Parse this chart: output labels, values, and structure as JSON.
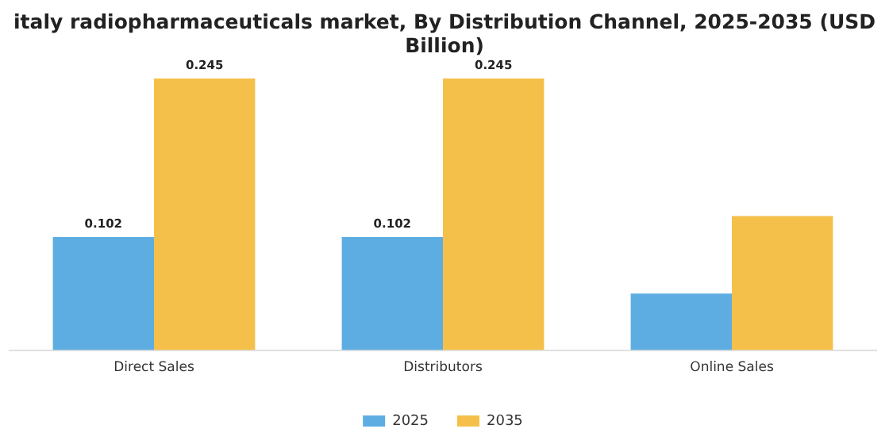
{
  "chart_data": {
    "type": "bar",
    "title": "italy radiopharmaceuticals market, By Distribution Channel, 2025-2035 (USD Billion)",
    "categories": [
      "Direct Sales",
      "Distributors",
      "Online Sales"
    ],
    "series": [
      {
        "name": "2025",
        "color": "#5dade2",
        "values": [
          0.102,
          0.102,
          0.051
        ],
        "value_labels": [
          "0.102",
          "0.102",
          null
        ]
      },
      {
        "name": "2035",
        "color": "#f5c04a",
        "values": [
          0.245,
          0.245,
          0.121
        ],
        "value_labels": [
          "0.245",
          "0.245",
          null
        ]
      }
    ],
    "legend": "bottom",
    "grid": false,
    "tick_labels": "x"
  }
}
